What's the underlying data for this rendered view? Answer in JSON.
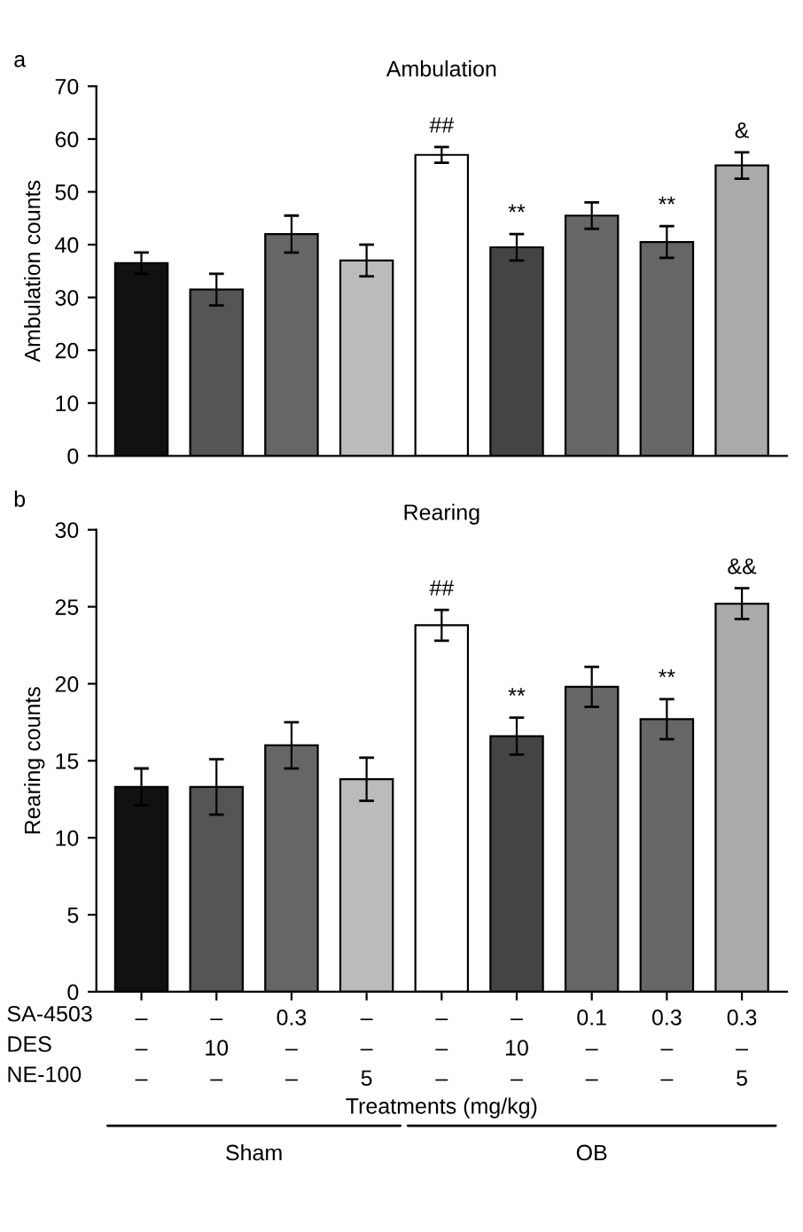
{
  "chart_data": [
    {
      "type": "bar",
      "title": "Ambulation",
      "ylabel": "Ambulation counts",
      "annotations": [
        "a"
      ],
      "categories": [
        null,
        null,
        null,
        null,
        null,
        null,
        null,
        null,
        null
      ],
      "values": [
        36.5,
        31.5,
        42,
        37,
        57,
        39.5,
        45.5,
        40.5,
        55
      ],
      "errors": [
        2,
        3,
        3.5,
        3,
        1.5,
        2.5,
        2.5,
        3,
        2.5
      ],
      "value_labels": [
        null,
        null,
        null,
        null,
        "##",
        "**",
        null,
        "**",
        "&"
      ],
      "colors": [
        "#111111",
        "#555555",
        "#666666",
        "#bbbbbb",
        "#ffffff",
        "#444444",
        "#666666",
        "#666666",
        "#aaaaaa"
      ],
      "ylim": [
        0,
        70
      ],
      "yticks": [
        0,
        10,
        20,
        30,
        40,
        50,
        60,
        70
      ],
      "tick_labels": "y",
      "grid": false,
      "legend": false
    },
    {
      "type": "bar",
      "title": "Rearing",
      "ylabel": "Rearing counts",
      "xlabel": "Treatments (mg/kg)",
      "annotations": [
        "b",
        "SA-4503",
        "DES",
        "NE-100",
        "Sham",
        "OB"
      ],
      "categories": [
        "–\n–\n–",
        "–\n10\n–",
        "0.3\n–\n–",
        "–\n–\n5",
        "–\n–\n–",
        "–\n10\n–",
        "0.1\n–\n–",
        "0.3\n–\n–",
        "0.3\n–\n5"
      ],
      "values": [
        13.3,
        13.3,
        16,
        13.8,
        23.8,
        16.6,
        19.8,
        17.7,
        25.2
      ],
      "errors": [
        1.2,
        1.8,
        1.5,
        1.4,
        1,
        1.2,
        1.3,
        1.3,
        1
      ],
      "value_labels": [
        null,
        null,
        null,
        null,
        "##",
        "**",
        null,
        "**",
        "&&"
      ],
      "colors": [
        "#111111",
        "#555555",
        "#666666",
        "#bbbbbb",
        "#ffffff",
        "#444444",
        "#666666",
        "#666666",
        "#aaaaaa"
      ],
      "ylim": [
        0,
        30
      ],
      "yticks": [
        0,
        5,
        10,
        15,
        20,
        25,
        30
      ],
      "grid": false,
      "legend": false
    }
  ]
}
